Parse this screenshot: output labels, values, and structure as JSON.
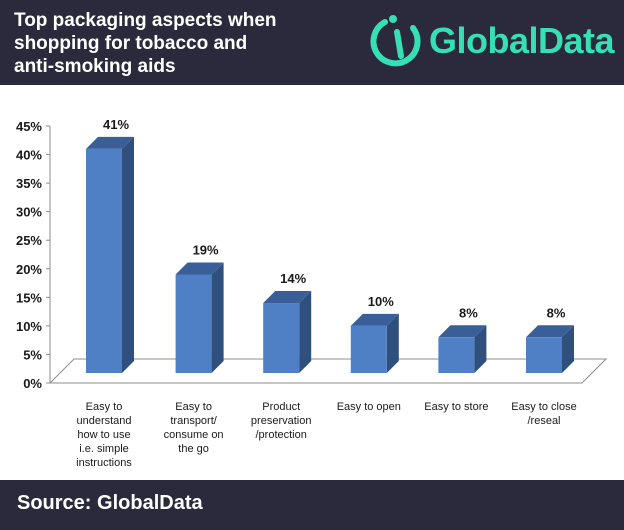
{
  "header": {
    "title": "Top packaging aspects when\nshopping for tobacco and\nanti-smoking aids",
    "brand": "GlobalData",
    "background": "#2b2a3d",
    "brand_color": "#35e0b4"
  },
  "footer": {
    "source": "Source: GlobalData"
  },
  "chart_data": {
    "type": "bar",
    "title": "",
    "xlabel": "",
    "ylabel": "",
    "categories": [
      [
        "Easy to",
        "understand",
        "how to use",
        "i.e. simple",
        "instructions"
      ],
      [
        "Easy to",
        "transport/",
        "consume on",
        "the go"
      ],
      [
        "Product",
        "preservation",
        "/protection"
      ],
      [
        "Easy to open"
      ],
      [
        "Easy to store"
      ],
      [
        "Easy to close",
        "/reseal"
      ]
    ],
    "values": [
      41,
      19,
      14,
      10,
      8,
      8
    ],
    "data_labels": [
      "41%",
      "19%",
      "14%",
      "10%",
      "8%",
      "8%"
    ],
    "yticks": [
      "0%",
      "5%",
      "10%",
      "15%",
      "20%",
      "25%",
      "30%",
      "35%",
      "40%",
      "45%"
    ],
    "ylim": [
      0,
      45
    ],
    "grid": false,
    "legend": "none",
    "style": "3d",
    "colors": {
      "bar_front": "#4f7fc4",
      "bar_side": "#2f4f7c",
      "bar_top": "#3a5f98",
      "axis": "#8c8c8c"
    }
  }
}
